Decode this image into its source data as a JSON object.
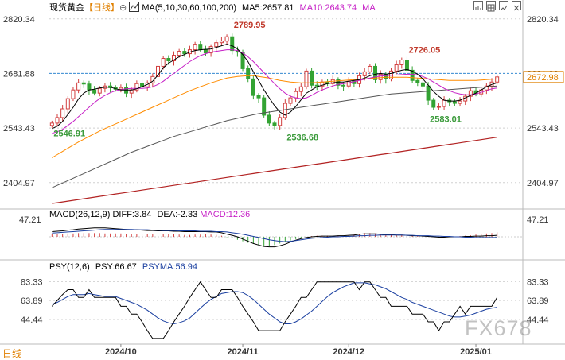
{
  "header": {
    "symbol": "现货黄金",
    "period": "【日线】",
    "circle_glyph": "⊖",
    "ma_label": "MA(5,10,30,60,100,200)",
    "ma5": "MA5:2657.81",
    "ma10": "MA10:2643.74",
    "ma_extra": "MA"
  },
  "macd_header": {
    "label": "MACD(26,12,9)",
    "diff": "DIFF:3.84",
    "dea": "DEA:-2.33",
    "macd": "MACD:12.36"
  },
  "psy_header": {
    "label": "PSY(12,6)",
    "psy": "PSY:66.67",
    "psyma": "PSYMA:56.94"
  },
  "footer": {
    "period_button": "日线",
    "watermark": "FX678"
  },
  "colors": {
    "up": "#d23f3f",
    "down": "#33a333",
    "ma5": "#000000",
    "ma10": "#c61fc6",
    "ma30": "#ff8c00",
    "ma60": "#555555",
    "ma100": "#b22222",
    "grid": "#d0d0d0"
  },
  "chart_data": [
    {
      "type": "candlestick",
      "title": "现货黄金",
      "ylim": [
        2340,
        2840
      ],
      "yticks": [
        2820.34,
        2681.88,
        2543.43,
        2404.97
      ],
      "current_price_label": "2672.98",
      "annotations": [
        {
          "text": "2789.95",
          "x": 34,
          "y": 2789.95
        },
        {
          "text": "2726.05",
          "x": 67,
          "y": 2726.05
        },
        {
          "text": "2546.91",
          "x": 0,
          "y": 2546.91
        },
        {
          "text": "2536.68",
          "x": 44,
          "y": 2536.68
        },
        {
          "text": "2583.01",
          "x": 71,
          "y": 2583.01
        }
      ],
      "x_labels": [
        {
          "text": "2024/10",
          "x": 13
        },
        {
          "text": "2024/11",
          "x": 36
        },
        {
          "text": "2024/12",
          "x": 56
        },
        {
          "text": "2025/01",
          "x": 80
        }
      ],
      "close": [
        2556,
        2570,
        2592,
        2618,
        2640,
        2658,
        2655,
        2640,
        2632,
        2644,
        2650,
        2646,
        2642,
        2646,
        2632,
        2640,
        2656,
        2648,
        2658,
        2674,
        2700,
        2720,
        2714,
        2728,
        2738,
        2732,
        2742,
        2756,
        2742,
        2734,
        2750,
        2760,
        2764,
        2775,
        2740,
        2736,
        2694,
        2668,
        2626,
        2620,
        2576,
        2556,
        2550,
        2570,
        2606,
        2620,
        2636,
        2648,
        2688,
        2652,
        2650,
        2660,
        2656,
        2666,
        2652,
        2650,
        2662,
        2656,
        2676,
        2686,
        2700,
        2666,
        2680,
        2668,
        2688,
        2704,
        2716,
        2690,
        2664,
        2658,
        2650,
        2614,
        2596,
        2598,
        2614,
        2610,
        2606,
        2612,
        2624,
        2638,
        2630,
        2640,
        2650,
        2660,
        2673
      ],
      "ma5": [
        2542,
        2548,
        2560,
        2578,
        2596,
        2617,
        2632,
        2640,
        2642,
        2645,
        2647,
        2647,
        2643,
        2640,
        2640,
        2640,
        2643,
        2648,
        2654,
        2662,
        2678,
        2696,
        2708,
        2716,
        2724,
        2730,
        2736,
        2740,
        2742,
        2743,
        2744,
        2748,
        2752,
        2756,
        2752,
        2744,
        2730,
        2712,
        2686,
        2664,
        2640,
        2620,
        2600,
        2584,
        2576,
        2584,
        2598,
        2615,
        2632,
        2640,
        2648,
        2652,
        2656,
        2658,
        2660,
        2660,
        2662,
        2664,
        2666,
        2670,
        2676,
        2680,
        2682,
        2680,
        2682,
        2686,
        2690,
        2692,
        2688,
        2680,
        2668,
        2652,
        2636,
        2624,
        2614,
        2612,
        2612,
        2614,
        2620,
        2626,
        2632,
        2640,
        2648,
        2654,
        2658
      ],
      "ma10": [
        2530,
        2534,
        2540,
        2550,
        2560,
        2572,
        2584,
        2596,
        2608,
        2618,
        2626,
        2633,
        2638,
        2641,
        2643,
        2644,
        2644,
        2644,
        2645,
        2648,
        2654,
        2662,
        2672,
        2682,
        2692,
        2702,
        2712,
        2720,
        2727,
        2732,
        2736,
        2738,
        2740,
        2742,
        2742,
        2740,
        2734,
        2724,
        2712,
        2698,
        2684,
        2670,
        2656,
        2643,
        2632,
        2624,
        2620,
        2618,
        2620,
        2626,
        2634,
        2640,
        2645,
        2650,
        2654,
        2656,
        2658,
        2661,
        2664,
        2667,
        2670,
        2673,
        2675,
        2676,
        2677,
        2678,
        2679,
        2680,
        2680,
        2678,
        2674,
        2668,
        2660,
        2652,
        2644,
        2638,
        2633,
        2630,
        2628,
        2628,
        2630,
        2634,
        2638,
        2643,
        2645
      ],
      "ma30": [
        2468,
        2476,
        2484,
        2492,
        2500,
        2508,
        2515,
        2522,
        2529,
        2536,
        2542,
        2548,
        2554,
        2560,
        2566,
        2572,
        2578,
        2584,
        2590,
        2596,
        2602,
        2608,
        2614,
        2620,
        2626,
        2632,
        2638,
        2643,
        2648,
        2653,
        2658,
        2662,
        2666,
        2670,
        2672,
        2674,
        2675,
        2676,
        2676,
        2674,
        2672,
        2670,
        2667,
        2664,
        2662,
        2660,
        2659,
        2658,
        2658,
        2658,
        2659,
        2660,
        2661,
        2662,
        2663,
        2664,
        2665,
        2666,
        2667,
        2668,
        2669,
        2670,
        2671,
        2672,
        2672,
        2672,
        2672,
        2672,
        2671,
        2670,
        2669,
        2668,
        2667,
        2666,
        2665,
        2664,
        2664,
        2664,
        2664,
        2664,
        2664,
        2665,
        2666,
        2667,
        2668
      ],
      "ma60": [
        2392,
        2398,
        2404,
        2410,
        2416,
        2422,
        2428,
        2434,
        2440,
        2446,
        2452,
        2458,
        2464,
        2470,
        2476,
        2482,
        2487,
        2492,
        2497,
        2502,
        2507,
        2512,
        2517,
        2522,
        2526,
        2530,
        2534,
        2538,
        2542,
        2546,
        2550,
        2554,
        2558,
        2562,
        2565,
        2568,
        2571,
        2574,
        2577,
        2580,
        2582,
        2584,
        2586,
        2588,
        2590,
        2592,
        2594,
        2596,
        2598,
        2600,
        2602,
        2604,
        2606,
        2608,
        2610,
        2612,
        2614,
        2616,
        2618,
        2620,
        2622,
        2624,
        2626,
        2628,
        2630,
        2631,
        2632,
        2633,
        2634,
        2635,
        2636,
        2637,
        2638,
        2639,
        2640,
        2641,
        2642,
        2643,
        2644,
        2645,
        2646,
        2647,
        2648,
        2649,
        2650
      ],
      "ma100": [
        2352,
        2354,
        2356,
        2358,
        2360,
        2362,
        2364,
        2366,
        2368,
        2370,
        2372,
        2374,
        2376,
        2378,
        2380,
        2382,
        2384,
        2386,
        2388,
        2390,
        2392,
        2394,
        2396,
        2398,
        2400,
        2402,
        2404,
        2406,
        2408,
        2410,
        2412,
        2414,
        2416,
        2418,
        2420,
        2422,
        2424,
        2426,
        2428,
        2430,
        2432,
        2434,
        2436,
        2438,
        2440,
        2442,
        2444,
        2446,
        2448,
        2450,
        2452,
        2454,
        2456,
        2458,
        2460,
        2462,
        2464,
        2466,
        2468,
        2470,
        2472,
        2474,
        2476,
        2478,
        2480,
        2482,
        2484,
        2486,
        2488,
        2490,
        2492,
        2494,
        2496,
        2498,
        2500,
        2502,
        2504,
        2506,
        2508,
        2510,
        2512,
        2514,
        2516,
        2518,
        2520
      ]
    },
    {
      "type": "bar",
      "title": "MACD(26,12,9)",
      "ylim": [
        -60,
        60
      ],
      "yticks": [
        47.21
      ],
      "hist": [
        8,
        8,
        8,
        9,
        9,
        10,
        10,
        10,
        10,
        10,
        9,
        9,
        9,
        9,
        8,
        8,
        8,
        8,
        8,
        8,
        8,
        8,
        8,
        7,
        6,
        5,
        5,
        6,
        6,
        7,
        6,
        5,
        3,
        -1,
        -4,
        -8,
        -12,
        -16,
        -19,
        -22,
        -24,
        -24,
        -22,
        -18,
        -14,
        -10,
        -6,
        -3,
        0,
        2,
        3,
        3,
        3,
        3,
        3,
        3,
        4,
        6,
        8,
        10,
        10,
        9,
        8,
        7,
        6,
        5,
        5,
        4,
        3,
        2,
        2,
        1,
        -1,
        -2,
        -1,
        0,
        1,
        2,
        3,
        4,
        6,
        7,
        9,
        10,
        12
      ],
      "diff": [
        14,
        15,
        16,
        18,
        19,
        21,
        22,
        23,
        24,
        24,
        24,
        23,
        22,
        21,
        20,
        19,
        19,
        18,
        17,
        17,
        16,
        16,
        16,
        15,
        15,
        14,
        14,
        14,
        14,
        14,
        13,
        13,
        11,
        7,
        4,
        0,
        -6,
        -12,
        -18,
        -22,
        -26,
        -27,
        -27,
        -24,
        -20,
        -14,
        -9,
        -5,
        -2,
        0,
        1,
        2,
        2,
        2,
        3,
        3,
        4,
        5,
        7,
        8,
        8,
        8,
        7,
        6,
        6,
        5,
        5,
        4,
        3,
        3,
        2,
        1,
        0,
        -1,
        -1,
        0,
        0,
        0,
        1,
        1,
        2,
        2,
        3,
        3,
        4
      ],
      "dea": [
        10,
        11,
        12,
        13,
        14,
        15,
        16,
        17,
        18,
        19,
        20,
        20,
        20,
        20,
        20,
        20,
        19,
        19,
        19,
        18,
        18,
        17,
        17,
        17,
        16,
        16,
        16,
        16,
        15,
        15,
        15,
        14,
        14,
        13,
        11,
        9,
        7,
        4,
        1,
        -2,
        -5,
        -8,
        -10,
        -12,
        -13,
        -12,
        -10,
        -8,
        -6,
        -4,
        -3,
        -2,
        -1,
        0,
        0,
        1,
        1,
        2,
        3,
        3,
        4,
        4,
        5,
        5,
        5,
        5,
        5,
        4,
        4,
        3,
        3,
        3,
        2,
        2,
        1,
        1,
        0,
        0,
        -1,
        -1,
        -2,
        -2,
        -2,
        -2,
        -2
      ]
    },
    {
      "type": "line",
      "title": "PSY(12,6)",
      "ylim": [
        20,
        95
      ],
      "yticks": [
        83.33,
        63.89,
        44.44
      ],
      "series": [
        {
          "name": "PSY",
          "values": [
            58,
            64,
            70,
            75,
            75,
            67,
            67,
            75,
            67,
            67,
            67,
            67,
            67,
            58,
            58,
            50,
            50,
            42,
            33,
            25,
            25,
            25,
            33,
            42,
            50,
            58,
            67,
            75,
            83,
            75,
            67,
            67,
            75,
            75,
            75,
            67,
            58,
            50,
            42,
            33,
            33,
            33,
            33,
            33,
            42,
            50,
            58,
            67,
            67,
            75,
            83,
            83,
            83,
            83,
            83,
            83,
            83,
            83,
            75,
            83,
            83,
            75,
            67,
            67,
            58,
            58,
            58,
            58,
            50,
            50,
            50,
            42,
            42,
            33,
            42,
            42,
            50,
            58,
            50,
            58,
            58,
            58,
            58,
            58,
            67
          ]
        },
        {
          "name": "PSYMA",
          "values": [
            60,
            62,
            65,
            68,
            70,
            70,
            70,
            71,
            70,
            69,
            68,
            68,
            68,
            66,
            64,
            62,
            60,
            57,
            54,
            50,
            46,
            43,
            41,
            40,
            41,
            43,
            46,
            51,
            56,
            61,
            65,
            68,
            71,
            72,
            73,
            73,
            72,
            69,
            65,
            60,
            55,
            50,
            46,
            42,
            40,
            40,
            42,
            45,
            49,
            53,
            58,
            63,
            68,
            72,
            75,
            78,
            80,
            82,
            82,
            82,
            81,
            80,
            78,
            76,
            73,
            70,
            67,
            65,
            62,
            60,
            58,
            56,
            54,
            52,
            50,
            48,
            47,
            47,
            48,
            49,
            51,
            53,
            55,
            56,
            57
          ]
        }
      ]
    }
  ]
}
